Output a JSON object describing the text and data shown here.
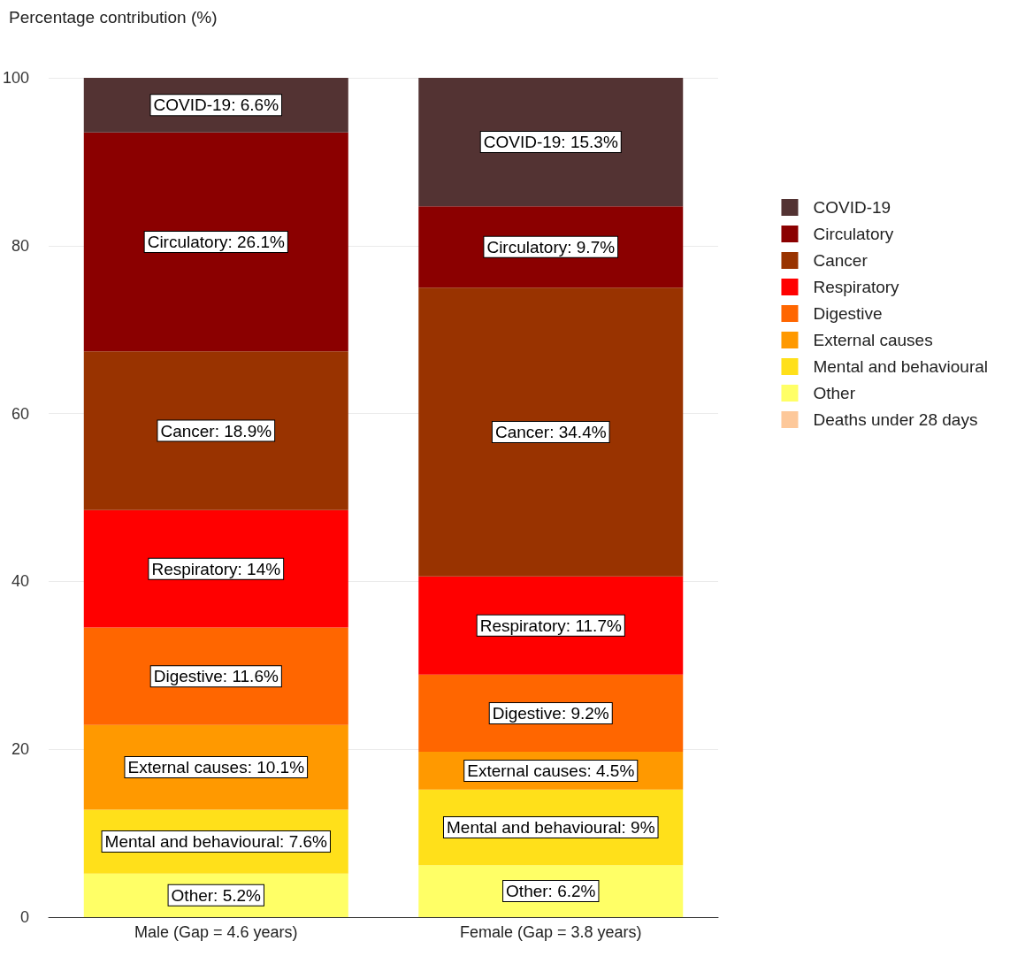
{
  "chart_data": {
    "type": "bar",
    "stacked": true,
    "ylabel": "Percentage contribution (%)",
    "categories": [
      "Male (Gap = 4.6 years)",
      "Female (Gap = 3.8 years)"
    ],
    "series": [
      {
        "name": "Deaths under 28 days",
        "color": "#fdc89a",
        "values": [
          0,
          0
        ],
        "value_labels": [
          null,
          null
        ]
      },
      {
        "name": "Other",
        "color": "#ffff66",
        "values": [
          5.2,
          6.2
        ],
        "value_labels": [
          "Other: 5.2%",
          "Other: 6.2%"
        ]
      },
      {
        "name": "Mental and behavioural",
        "color": "#ffe01a",
        "values": [
          7.6,
          9
        ],
        "value_labels": [
          "Mental and behavioural: 7.6%",
          "Mental and behavioural: 9%"
        ]
      },
      {
        "name": "External causes",
        "color": "#ff9900",
        "values": [
          10.1,
          4.5
        ],
        "value_labels": [
          "External causes: 10.1%",
          "External causes: 4.5%"
        ]
      },
      {
        "name": "Digestive",
        "color": "#ff6600",
        "values": [
          11.6,
          9.2
        ],
        "value_labels": [
          "Digestive: 11.6%",
          "Digestive: 9.2%"
        ]
      },
      {
        "name": "Respiratory",
        "color": "#ff0000",
        "values": [
          14,
          11.7
        ],
        "value_labels": [
          "Respiratory: 14%",
          "Respiratory: 11.7%"
        ]
      },
      {
        "name": "Cancer",
        "color": "#993300",
        "values": [
          18.9,
          34.4
        ],
        "value_labels": [
          "Cancer: 18.9%",
          "Cancer: 34.4%"
        ]
      },
      {
        "name": "Circulatory",
        "color": "#8b0000",
        "values": [
          26.1,
          9.7
        ],
        "value_labels": [
          "Circulatory: 26.1%",
          "Circulatory: 9.7%"
        ]
      },
      {
        "name": "COVID-19",
        "color": "#533333",
        "values": [
          6.6,
          15.3
        ],
        "value_labels": [
          "COVID-19: 6.6%",
          "COVID-19: 15.3%"
        ]
      }
    ],
    "ylim": [
      0,
      100
    ],
    "yticks": [
      0,
      20,
      40,
      60,
      80,
      100
    ],
    "grid": "y",
    "legend": "right"
  }
}
